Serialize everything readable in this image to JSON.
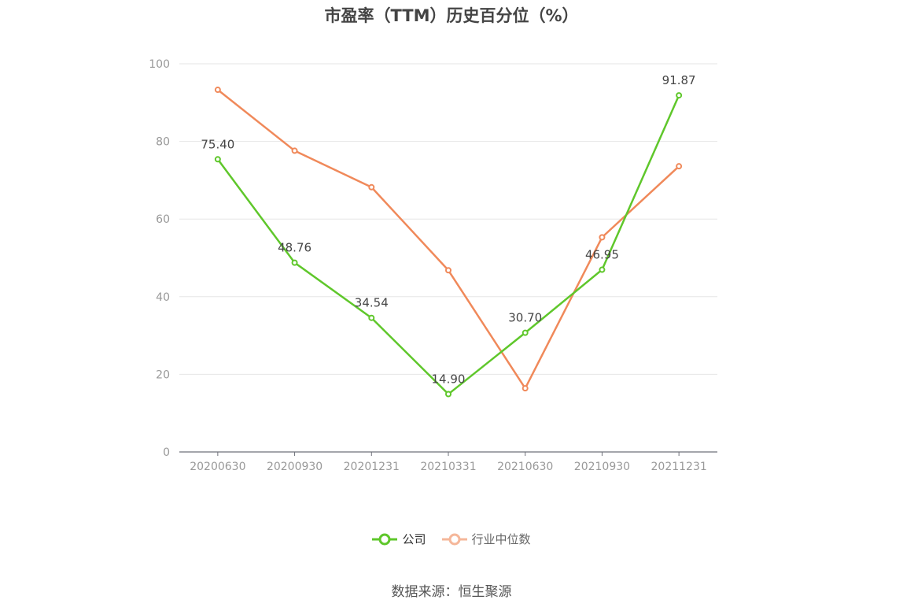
{
  "chart_data": {
    "type": "line",
    "title": "市盈率（TTM）历史百分位（%）",
    "categories": [
      "20200630",
      "20200930",
      "20201231",
      "20210331",
      "20210630",
      "20210930",
      "20211231"
    ],
    "ylim": [
      0,
      100
    ],
    "yticks": [
      "0",
      "20",
      "40",
      "60",
      "80",
      "100"
    ],
    "grid": true,
    "legend_position": "bottom",
    "series": [
      {
        "name": "公司",
        "color": "#5fc72b",
        "values": [
          75.4,
          48.76,
          34.54,
          14.9,
          30.7,
          46.95,
          91.87
        ],
        "labels": [
          "75.40",
          "48.76",
          "34.54",
          "14.90",
          "30.70",
          "46.95",
          "91.87"
        ]
      },
      {
        "name": "行业中位数",
        "color": "#f0895a",
        "values": [
          93.3,
          77.6,
          68.2,
          46.8,
          16.4,
          55.3,
          73.6
        ]
      }
    ]
  },
  "legend": {
    "company": "公司",
    "industry": "行业中位数",
    "company_color": "#5fc72b",
    "industry_color": "#f5b79a"
  },
  "source": "数据来源：恒生聚源"
}
